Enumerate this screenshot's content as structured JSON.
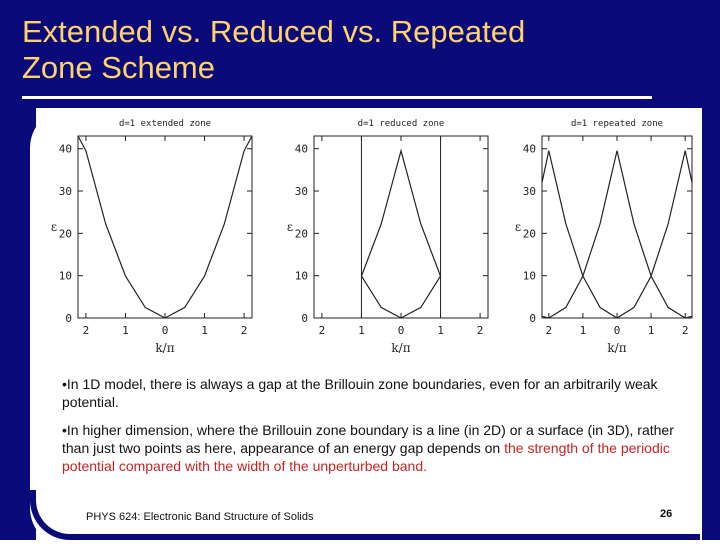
{
  "slide": {
    "title_line1": "Extended vs. Reduced vs. Repeated",
    "title_line2": "Zone Scheme",
    "bullet1": "•In 1D model, there is always a gap at the Brillouin zone boundaries, even for an arbitrarily weak potential.",
    "bullet2_black": "•In higher dimension, where the Brillouin zone boundary is a line (in 2D) or a surface (in 3D), rather than just two points as here, appearance of an energy gap depends on ",
    "bullet2_red": "the strength of the periodic potential compared with the width of the unperturbed band.",
    "footer": "PHYS 624: Electronic Band Structure of Solids",
    "page_number": "26",
    "colors": {
      "frame": "#0a0a7a",
      "title": "#ffd36a",
      "highlight": "#cc2222"
    }
  },
  "chart_data": [
    {
      "type": "line",
      "title": "d=1 extended zone",
      "xlabel": "k/π",
      "ylabel": "ε",
      "xlim": [
        -2.2,
        2.2
      ],
      "ylim": [
        0,
        43
      ],
      "x_ticks": [
        "2",
        "1",
        "0",
        "1",
        "2"
      ],
      "y_ticks": [
        "0",
        "10",
        "20",
        "30",
        "40"
      ],
      "zone_boundaries": [],
      "series": [
        {
          "x": [
            -2.2,
            -2,
            -1.5,
            -1,
            -0.5,
            0,
            0.5,
            1,
            1.5,
            2,
            2.2
          ],
          "y": [
            47.8,
            39.5,
            22.2,
            9.9,
            2.5,
            0,
            2.5,
            9.9,
            22.2,
            39.5,
            47.8
          ]
        }
      ]
    },
    {
      "type": "line",
      "title": "d=1 reduced zone",
      "xlabel": "k/π",
      "ylabel": "ε",
      "xlim": [
        -2.2,
        2.2
      ],
      "ylim": [
        0,
        43
      ],
      "x_ticks": [
        "2",
        "1",
        "0",
        "1",
        "2"
      ],
      "y_ticks": [
        "0",
        "10",
        "20",
        "30",
        "40"
      ],
      "zone_boundaries": [
        -1,
        1
      ],
      "series": [
        {
          "x": [
            -1,
            -0.5,
            0,
            0.5,
            1
          ],
          "y": [
            9.9,
            2.5,
            0,
            2.5,
            9.9
          ]
        },
        {
          "x": [
            -1,
            -0.5,
            0,
            0.5,
            1
          ],
          "y": [
            9.9,
            22.2,
            39.5,
            22.2,
            9.9
          ]
        }
      ]
    },
    {
      "type": "line",
      "title": "d=1 repeated zone",
      "xlabel": "k/π",
      "ylabel": "ε",
      "xlim": [
        -2.2,
        2.2
      ],
      "ylim": [
        0,
        43
      ],
      "x_ticks": [
        "2",
        "1",
        "0",
        "1",
        "2"
      ],
      "y_ticks": [
        "0",
        "10",
        "20",
        "30",
        "40"
      ],
      "zone_boundaries": [],
      "series": [
        {
          "x": [
            -2.2,
            -2,
            -1.5,
            -1,
            -0.5,
            0,
            0.5,
            1,
            1.5,
            2,
            2.2
          ],
          "y": [
            0.4,
            0,
            2.5,
            9.9,
            2.5,
            0,
            2.5,
            9.9,
            2.5,
            0,
            0.4
          ]
        },
        {
          "x": [
            -2.2,
            -2,
            -1.5,
            -1,
            -0.5,
            0,
            0.5,
            1,
            1.5,
            2,
            2.2
          ],
          "y": [
            32,
            39.5,
            22.2,
            9.9,
            22.2,
            39.5,
            22.2,
            9.9,
            22.2,
            39.5,
            32
          ]
        }
      ]
    }
  ]
}
